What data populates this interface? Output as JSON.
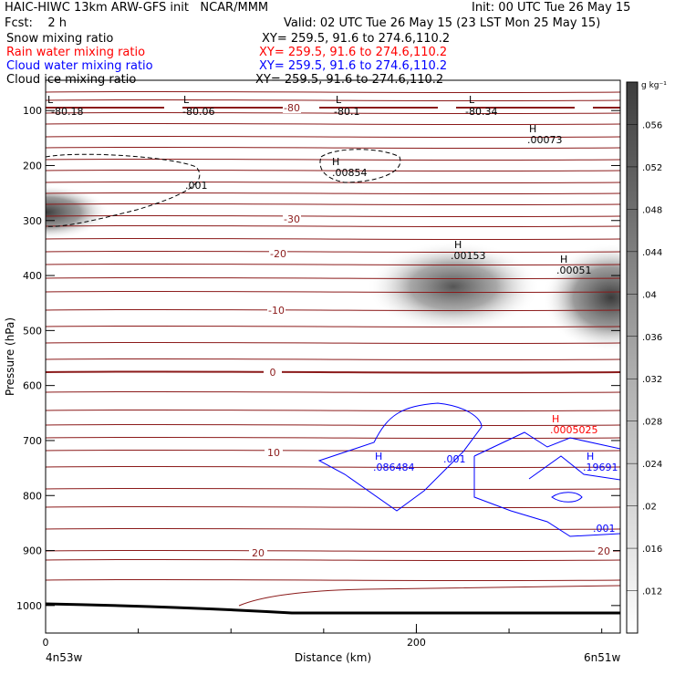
{
  "header": {
    "model_line": "HAIC-HIWC 13km ARW-GFS init   NCAR/MMM",
    "init_line": "Init: 00 UTC Tue 26 May 15",
    "fcst_line": "Fcst:    2 h",
    "valid_line": "Valid: 02 UTC Tue 26 May 15 (23 LST Mon 25 May 15)",
    "fields": [
      {
        "label": "Snow mixing ratio",
        "xy": "XY= 259.5, 91.6 to 274.6,110.2",
        "color": "#000000"
      },
      {
        "label": "Rain water mixing ratio",
        "xy": "XY= 259.5, 91.6 to 274.6,110.2",
        "color": "#ff0000"
      },
      {
        "label": "Cloud water mixing ratio",
        "xy": "XY= 259.5, 91.6 to 274.6,110.2",
        "color": "#0000ff"
      },
      {
        "label": "Cloud ice mixing ratio",
        "xy": "XY= 259.5, 91.6 to 274.6,110.2",
        "color": "#000000"
      }
    ]
  },
  "chart_data": {
    "type": "heatmap",
    "xlabel": "Distance (km)",
    "ylabel": "Pressure (hPa)",
    "x_ticks": [
      0,
      200
    ],
    "y_ticks": [
      100,
      200,
      300,
      400,
      500,
      600,
      700,
      800,
      900,
      1000
    ],
    "xlim": [
      0,
      310
    ],
    "ylim": [
      45,
      1050
    ],
    "x_endpoints": {
      "left": "4n53w",
      "right": "6n51w"
    },
    "colorbar": {
      "unit": "g kg⁻¹",
      "ticks": [
        ".012",
        ".016",
        ".02",
        ".024",
        ".028",
        ".032",
        ".036",
        ".04",
        ".044",
        ".048",
        ".052",
        ".056"
      ],
      "values": [
        0.012,
        0.016,
        0.02,
        0.024,
        0.028,
        0.032,
        0.036,
        0.04,
        0.044,
        0.048,
        0.052,
        0.056
      ]
    },
    "shaded_snow_regions": [
      {
        "x": 0,
        "p": 285,
        "peak": 0.056
      },
      {
        "x": 220,
        "p": 420,
        "peak": 0.05
      },
      {
        "x": 305,
        "p": 440,
        "peak": 0.056
      }
    ],
    "temperature_labels": [
      "-80",
      "-30",
      "-20",
      "-10",
      "0",
      "10",
      "20",
      "20"
    ],
    "extrema_labels": [
      {
        "text": "L",
        "value": "-80.18",
        "color": "#000000"
      },
      {
        "text": "L",
        "value": "-80.06",
        "color": "#000000"
      },
      {
        "text": "L",
        "value": "-80.1",
        "color": "#000000"
      },
      {
        "text": "L",
        "value": "-80.34",
        "color": "#000000"
      },
      {
        "text": "H",
        "value": ".00073",
        "color": "#000000"
      },
      {
        "text": "H",
        "value": ".00854",
        "color": "#000000"
      },
      {
        "text": "H",
        "value": ".00153",
        "color": "#000000"
      },
      {
        "text": "H",
        "value": ".00051",
        "color": "#000000"
      },
      {
        "text": "H",
        "value": ".0005025",
        "color": "#ff0000"
      },
      {
        "text": "H",
        "value": ".086484",
        "color": "#0000ff"
      },
      {
        "text": "H",
        "value": ".19691",
        "color": "#0000ff"
      }
    ],
    "contour_value_labels": [
      {
        "text": ".001",
        "color": "#000000"
      },
      {
        "text": ".001",
        "color": "#0000ff"
      },
      {
        "text": ".001",
        "color": "#0000ff"
      }
    ],
    "colors": {
      "isotherm": "#8b1a1a",
      "terrain": "#000000",
      "cloud_water": "#0000ff",
      "rain": "#ff0000"
    }
  }
}
